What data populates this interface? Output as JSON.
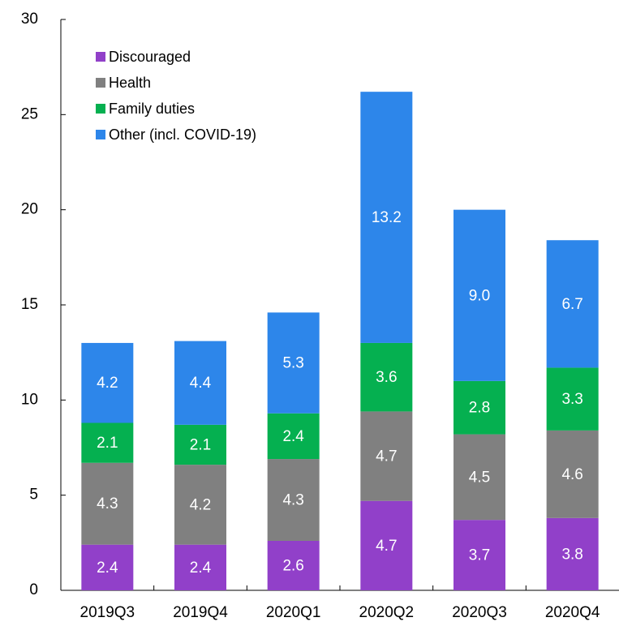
{
  "chart_data": {
    "type": "stacked-bar",
    "categories": [
      "2019Q3",
      "2019Q4",
      "2020Q1",
      "2020Q2",
      "2020Q3",
      "2020Q4"
    ],
    "series": [
      {
        "name": "Discouraged",
        "color": "#9140c9",
        "values": [
          2.4,
          2.4,
          2.6,
          4.7,
          3.7,
          3.8
        ]
      },
      {
        "name": "Health",
        "color": "#808080",
        "values": [
          4.3,
          4.2,
          4.3,
          4.7,
          4.5,
          4.6
        ]
      },
      {
        "name": "Family duties",
        "color": "#05b050",
        "values": [
          2.1,
          2.1,
          2.4,
          3.6,
          2.8,
          3.3
        ]
      },
      {
        "name": "Other (incl. COVID-19)",
        "color": "#2d86ea",
        "values": [
          4.2,
          4.4,
          5.3,
          13.2,
          9.0,
          6.7
        ],
        "value_labels": [
          "4.2",
          "4.4",
          "5.3",
          "13.2",
          "9.0",
          "6.7"
        ]
      }
    ],
    "ylim": [
      0,
      30
    ],
    "yticks": [
      0,
      5,
      10,
      15,
      20,
      25,
      30
    ],
    "grid": false,
    "legend": "upper left"
  }
}
